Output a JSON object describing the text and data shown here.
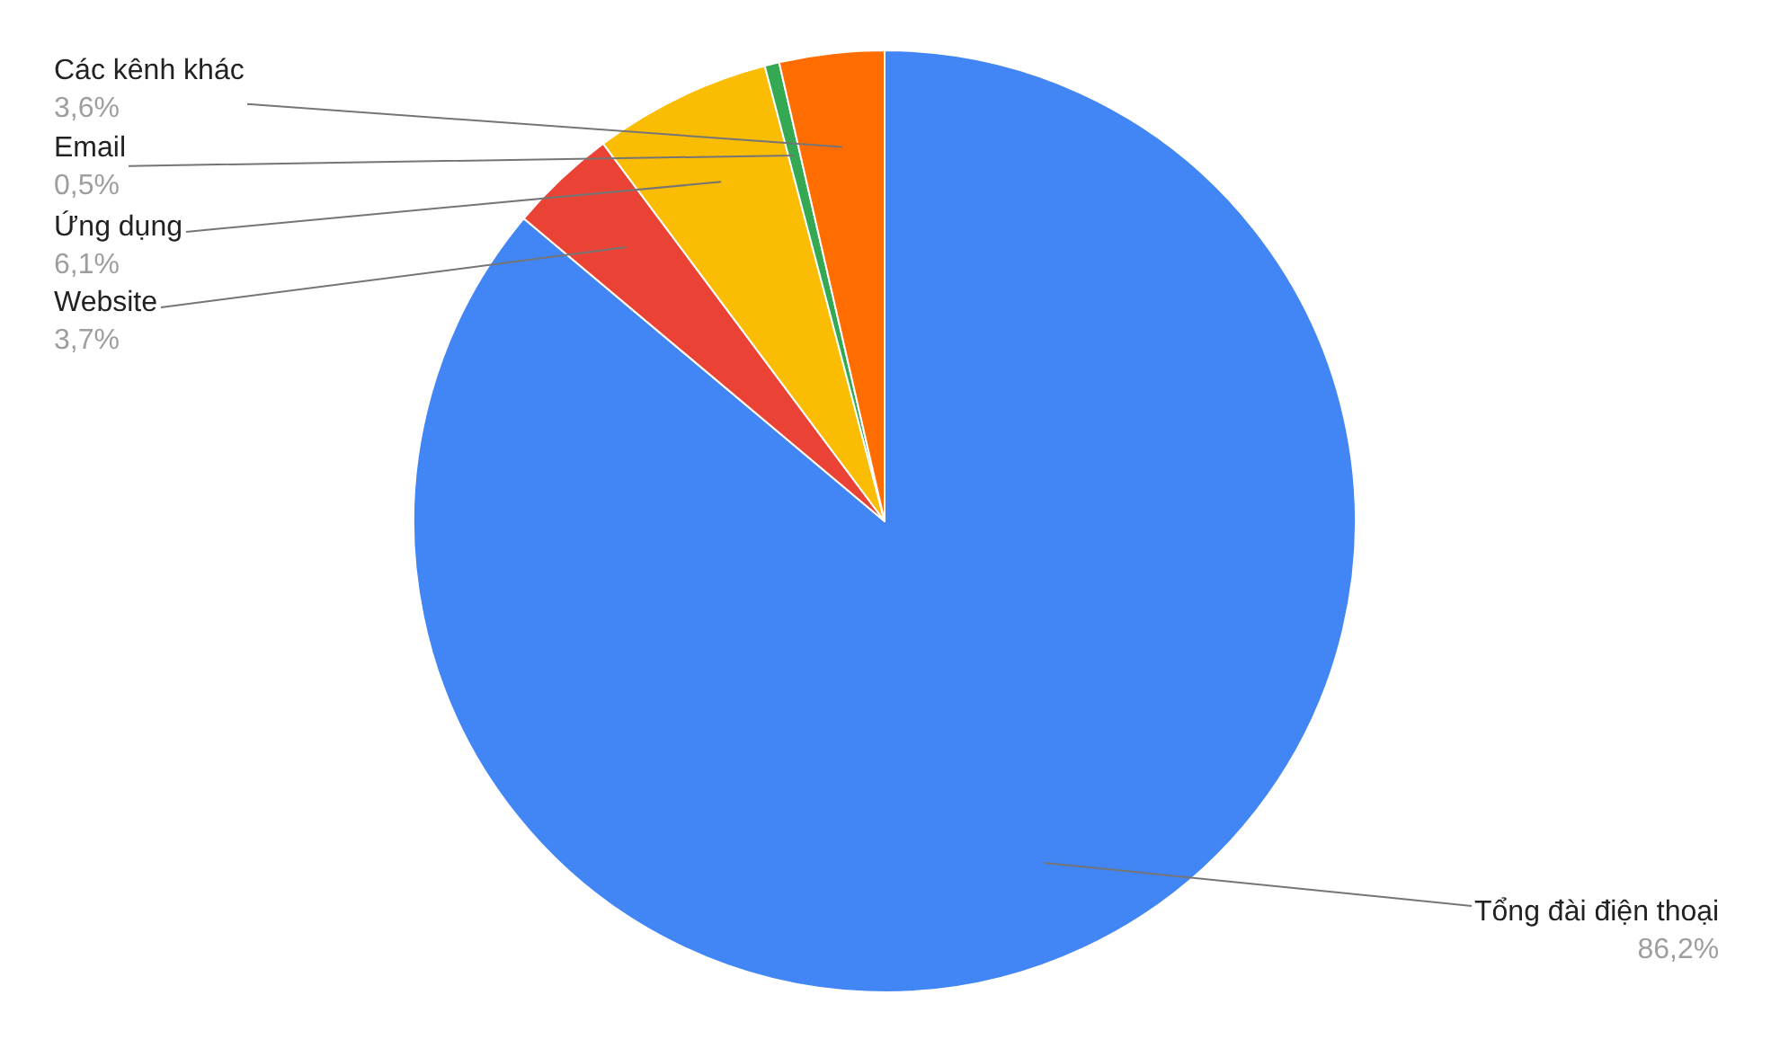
{
  "chart_data": {
    "type": "pie",
    "categories": [
      "Tổng đài điện thoại",
      "Website",
      "Ứng dụng",
      "Email",
      "Các kênh khác"
    ],
    "values": [
      86.2,
      3.7,
      6.1,
      0.5,
      3.6
    ],
    "colors": [
      "#4285f4",
      "#ea4335",
      "#fbbc04",
      "#34a853",
      "#ff6d01"
    ],
    "value_labels": [
      "86,2%",
      "3,7%",
      "6,1%",
      "0,5%",
      "3,6%"
    ]
  }
}
